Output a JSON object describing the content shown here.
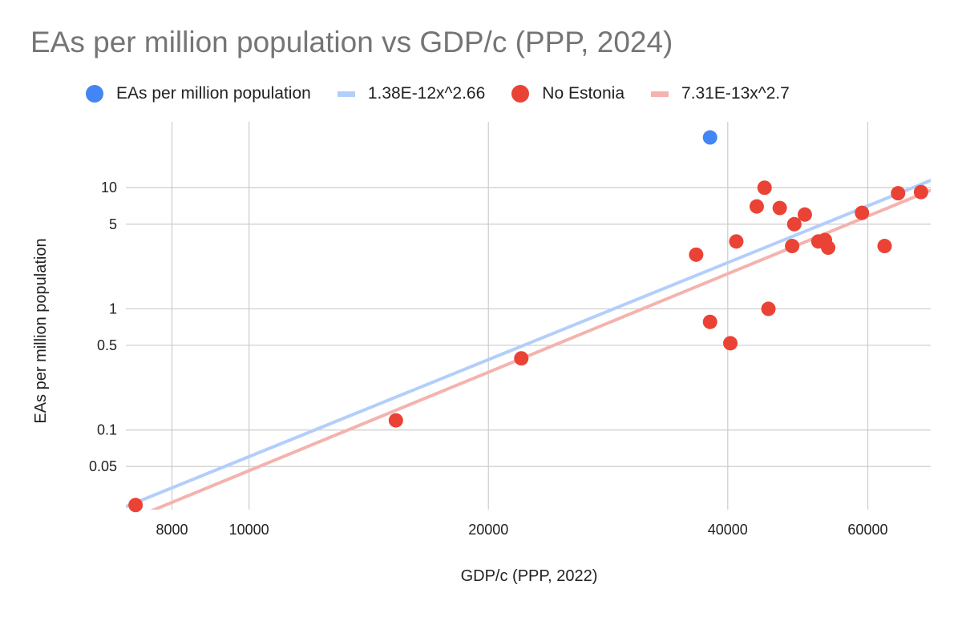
{
  "chart_data": {
    "type": "scatter",
    "title": "EAs per million population vs GDP/c (PPP, 2024)",
    "xlabel": "GDP/c (PPP, 2022)",
    "ylabel": "EAs per million population",
    "x_scale": "log",
    "y_scale": "log",
    "xlim": [
      7000,
      72000
    ],
    "ylim": [
      0.022,
      35
    ],
    "x_ticks": [
      8000,
      10000,
      20000,
      40000,
      60000
    ],
    "x_tick_labels": [
      "8000",
      "10000",
      "20000",
      "40000",
      "60000"
    ],
    "y_ticks": [
      0.05,
      0.1,
      0.5,
      1,
      5,
      10
    ],
    "y_tick_labels": [
      "0.05",
      "0.1",
      "0.5",
      "1",
      "5",
      "10"
    ],
    "grid": true,
    "legend_position": "top",
    "series": [
      {
        "name": "EAs per million population",
        "kind": "points",
        "color": "#4285f4",
        "points": [
          [
            38000,
            26
          ]
        ]
      },
      {
        "name": "1.38E-12x^2.66",
        "kind": "trendline",
        "color": "#b3cefb",
        "coef": 1.38e-12,
        "exponent": 2.66
      },
      {
        "name": "No Estonia",
        "kind": "points",
        "color": "#ea4335",
        "points": [
          [
            7200,
            0.024
          ],
          [
            15300,
            0.12
          ],
          [
            22000,
            0.39
          ],
          [
            36500,
            2.8
          ],
          [
            38000,
            0.78
          ],
          [
            40300,
            0.52
          ],
          [
            41000,
            3.6
          ],
          [
            43500,
            7.0
          ],
          [
            44500,
            10.0
          ],
          [
            45000,
            1.0
          ],
          [
            46500,
            6.8
          ],
          [
            48200,
            3.3
          ],
          [
            48500,
            5.0
          ],
          [
            50000,
            6.0
          ],
          [
            52000,
            3.6
          ],
          [
            53000,
            3.7
          ],
          [
            53500,
            3.2
          ],
          [
            59000,
            6.2
          ],
          [
            63000,
            3.3
          ],
          [
            65500,
            9.0
          ],
          [
            70000,
            9.2
          ]
        ]
      },
      {
        "name": "7.31E-13x^2.7",
        "kind": "trendline",
        "color": "#f4b3ae",
        "coef": 7.31e-13,
        "exponent": 2.7
      }
    ]
  }
}
